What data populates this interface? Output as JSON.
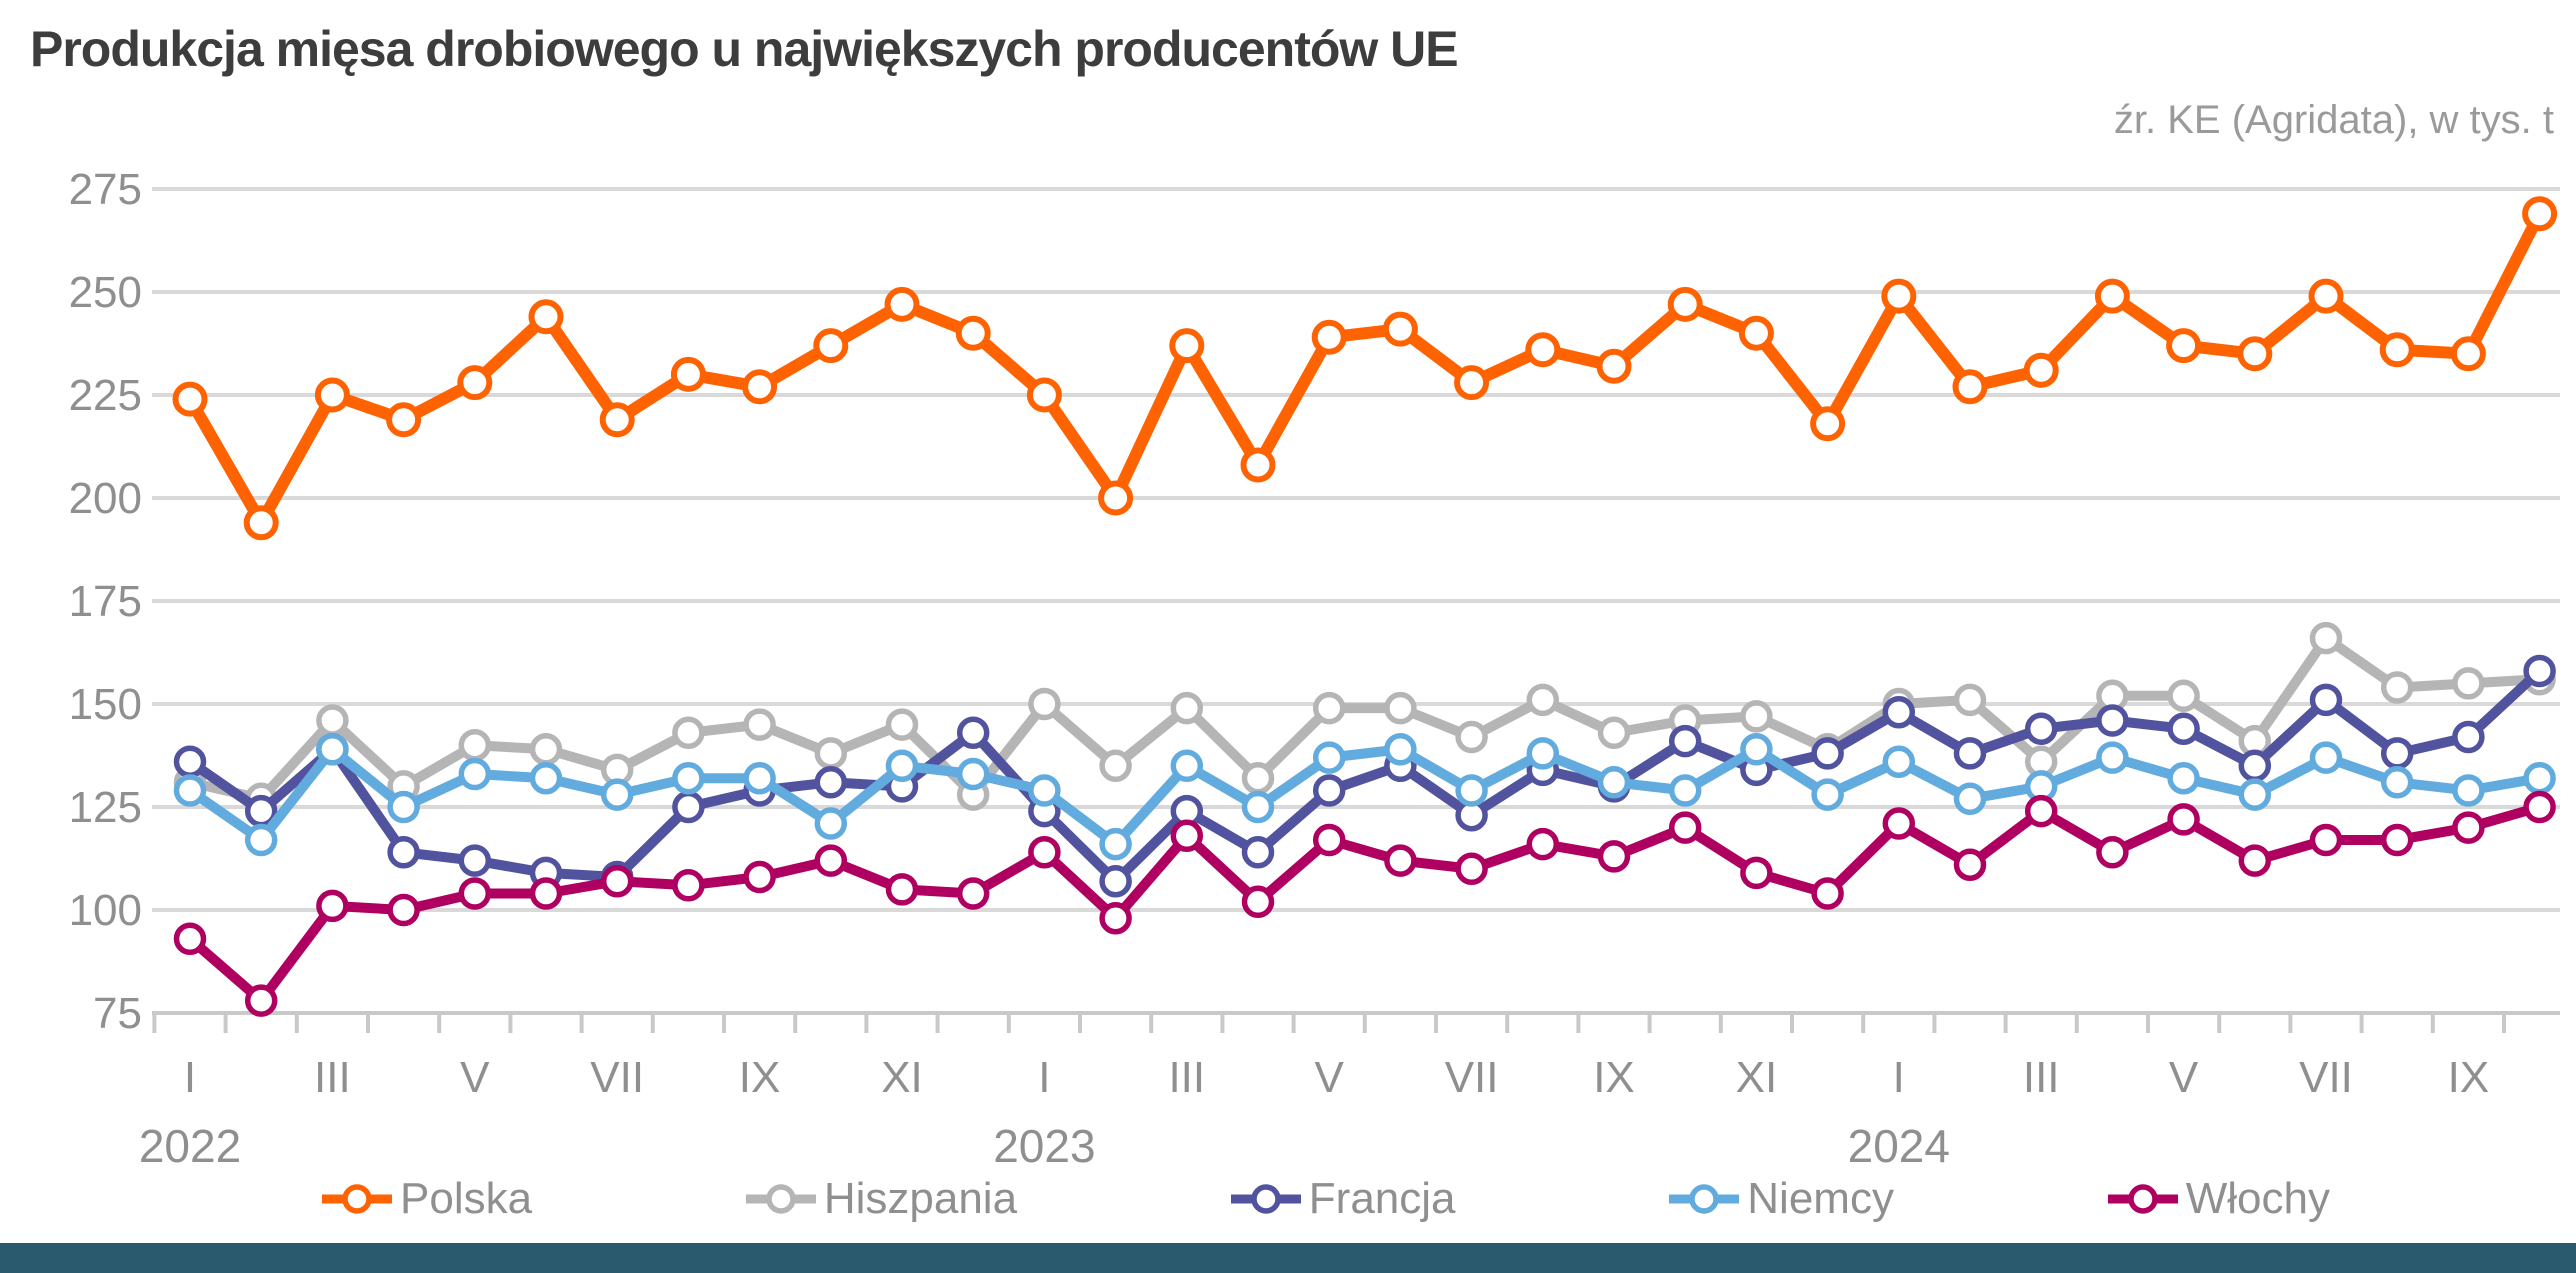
{
  "title": "Produkcja mięsa drobiowego u największych producentów UE",
  "source_note": "źr. KE (Agridata), w tys. t",
  "colors": {
    "background": "#ffffff",
    "title_text": "#3d3d3d",
    "axis_text": "#8f8f8f",
    "source_text": "#9a9a9a",
    "gridline": "#d9d9d9",
    "axis_line": "#c9c9c9",
    "footer_bar": "#2a5a6e"
  },
  "chart_data": {
    "type": "line",
    "title": "Produkcja mięsa drobiowego u największych producentów UE",
    "unit": "tys. t",
    "ylim": [
      75,
      275
    ],
    "y_ticks": [
      75,
      100,
      125,
      150,
      175,
      200,
      225,
      250,
      275
    ],
    "grid": true,
    "legend_position": "bottom",
    "categories": [
      "2022-01",
      "2022-02",
      "2022-03",
      "2022-04",
      "2022-05",
      "2022-06",
      "2022-07",
      "2022-08",
      "2022-09",
      "2022-10",
      "2022-11",
      "2022-12",
      "2023-01",
      "2023-02",
      "2023-03",
      "2023-04",
      "2023-05",
      "2023-06",
      "2023-07",
      "2023-08",
      "2023-09",
      "2023-10",
      "2023-11",
      "2023-12",
      "2024-01",
      "2024-02",
      "2024-03",
      "2024-04",
      "2024-05",
      "2024-06",
      "2024-07",
      "2024-08",
      "2024-09",
      "2024-10"
    ],
    "x_tick_labels": [
      {
        "index": 0,
        "text": "I"
      },
      {
        "index": 2,
        "text": "III"
      },
      {
        "index": 4,
        "text": "V"
      },
      {
        "index": 6,
        "text": "VII"
      },
      {
        "index": 8,
        "text": "IX"
      },
      {
        "index": 10,
        "text": "XI"
      },
      {
        "index": 12,
        "text": "I"
      },
      {
        "index": 14,
        "text": "III"
      },
      {
        "index": 16,
        "text": "V"
      },
      {
        "index": 18,
        "text": "VII"
      },
      {
        "index": 20,
        "text": "IX"
      },
      {
        "index": 22,
        "text": "XI"
      },
      {
        "index": 24,
        "text": "I"
      },
      {
        "index": 26,
        "text": "III"
      },
      {
        "index": 28,
        "text": "V"
      },
      {
        "index": 30,
        "text": "VII"
      },
      {
        "index": 32,
        "text": "IX"
      }
    ],
    "year_labels": [
      {
        "index": 0,
        "text": "2022"
      },
      {
        "index": 12,
        "text": "2023"
      },
      {
        "index": 24,
        "text": "2024"
      }
    ],
    "series": [
      {
        "id": "polska",
        "name": "Polska",
        "color": "#ff6200",
        "values": [
          224,
          194,
          225,
          219,
          228,
          244,
          219,
          230,
          227,
          237,
          247,
          240,
          225,
          200,
          237,
          208,
          239,
          241,
          228,
          236,
          232,
          247,
          240,
          218,
          249,
          227,
          231,
          249,
          237,
          235,
          249,
          236,
          235,
          269
        ]
      },
      {
        "id": "hiszpania",
        "name": "Hiszpania",
        "color": "#b5b5b5",
        "values": [
          131,
          127,
          146,
          130,
          140,
          139,
          134,
          143,
          145,
          138,
          145,
          128,
          150,
          135,
          149,
          132,
          149,
          149,
          142,
          151,
          143,
          146,
          147,
          139,
          150,
          151,
          136,
          152,
          152,
          141,
          166,
          154,
          155,
          156
        ]
      },
      {
        "id": "francja",
        "name": "Francja",
        "color": "#51539e",
        "values": [
          136,
          124,
          139,
          114,
          112,
          109,
          108,
          125,
          129,
          131,
          130,
          143,
          124,
          107,
          124,
          114,
          129,
          135,
          123,
          134,
          130,
          141,
          134,
          138,
          148,
          138,
          144,
          146,
          144,
          135,
          151,
          138,
          142,
          158
        ]
      },
      {
        "id": "niemcy",
        "name": "Niemcy",
        "color": "#62abdf",
        "values": [
          129,
          117,
          139,
          125,
          133,
          132,
          128,
          132,
          132,
          121,
          135,
          133,
          129,
          116,
          135,
          125,
          137,
          139,
          129,
          138,
          131,
          129,
          139,
          128,
          136,
          127,
          130,
          137,
          132,
          128,
          137,
          131,
          129,
          132
        ]
      },
      {
        "id": "wlochy",
        "name": "Włochy",
        "color": "#af0061",
        "values": [
          93,
          78,
          101,
          100,
          104,
          104,
          107,
          106,
          108,
          112,
          105,
          104,
          114,
          98,
          118,
          102,
          117,
          112,
          110,
          116,
          113,
          120,
          109,
          104,
          121,
          111,
          124,
          114,
          122,
          112,
          117,
          117,
          120,
          125
        ]
      }
    ]
  }
}
